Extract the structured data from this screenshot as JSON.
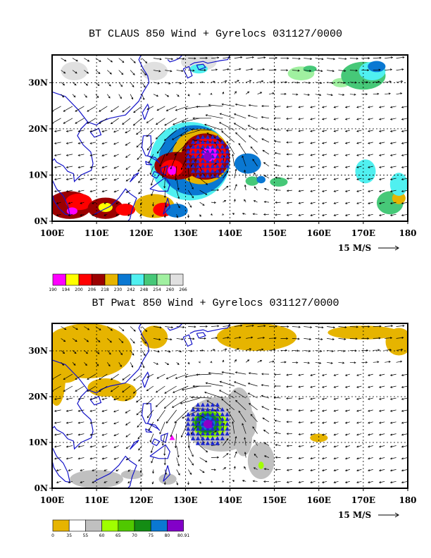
{
  "chart_data": [
    {
      "type": "vector-field map",
      "title": "BT CLAUS 850 Wind + Gyrelocs 031127/0000",
      "x_ticks": [
        "100E",
        "110E",
        "120E",
        "130E",
        "140E",
        "150E",
        "160E",
        "170E",
        "180"
      ],
      "y_ticks": [
        "0N",
        "10N",
        "20N",
        "30N"
      ],
      "xlim": [
        100,
        180
      ],
      "ylim": [
        0,
        36
      ],
      "grid": "dashed",
      "reference_vector_label": "15 M/S",
      "shaded_field_colorbar": {
        "labels": [
          "190",
          "194",
          "200",
          "206",
          "218",
          "230",
          "242",
          "248",
          "254",
          "260",
          "266"
        ],
        "colors": [
          "#ff00ff",
          "#ffff00",
          "#ff0000",
          "#9b0000",
          "#e6b400",
          "#0a78d2",
          "#50f0f0",
          "#46c878",
          "#a0f0a0",
          "#e0e0e0"
        ]
      },
      "gyre_center": {
        "lon": 135,
        "lat": 14
      },
      "secondary_marker": {
        "lon": 127,
        "lat": 11
      }
    },
    {
      "type": "vector-field map",
      "title": "BT Pwat 850 Wind + Gyrelocs 031127/0000",
      "x_ticks": [
        "100E",
        "110E",
        "120E",
        "130E",
        "140E",
        "150E",
        "160E",
        "170E",
        "180"
      ],
      "y_ticks": [
        "0N",
        "10N",
        "20N",
        "30N"
      ],
      "xlim": [
        100,
        180
      ],
      "ylim": [
        0,
        36
      ],
      "grid": "dashed",
      "reference_vector_label": "15 M/S",
      "shaded_field_colorbar": {
        "labels": [
          "0",
          "35",
          "55",
          "60",
          "65",
          "70",
          "75",
          "80",
          "80.91"
        ],
        "colors": [
          "#e6b400",
          "#ffffff",
          "#c0c0c0",
          "#a0ff00",
          "#50c800",
          "#148c14",
          "#0a78d2",
          "#8200c8"
        ]
      },
      "gyre_center": {
        "lon": 135,
        "lat": 14
      },
      "secondary_marker": {
        "lon": 127,
        "lat": 11
      }
    }
  ]
}
